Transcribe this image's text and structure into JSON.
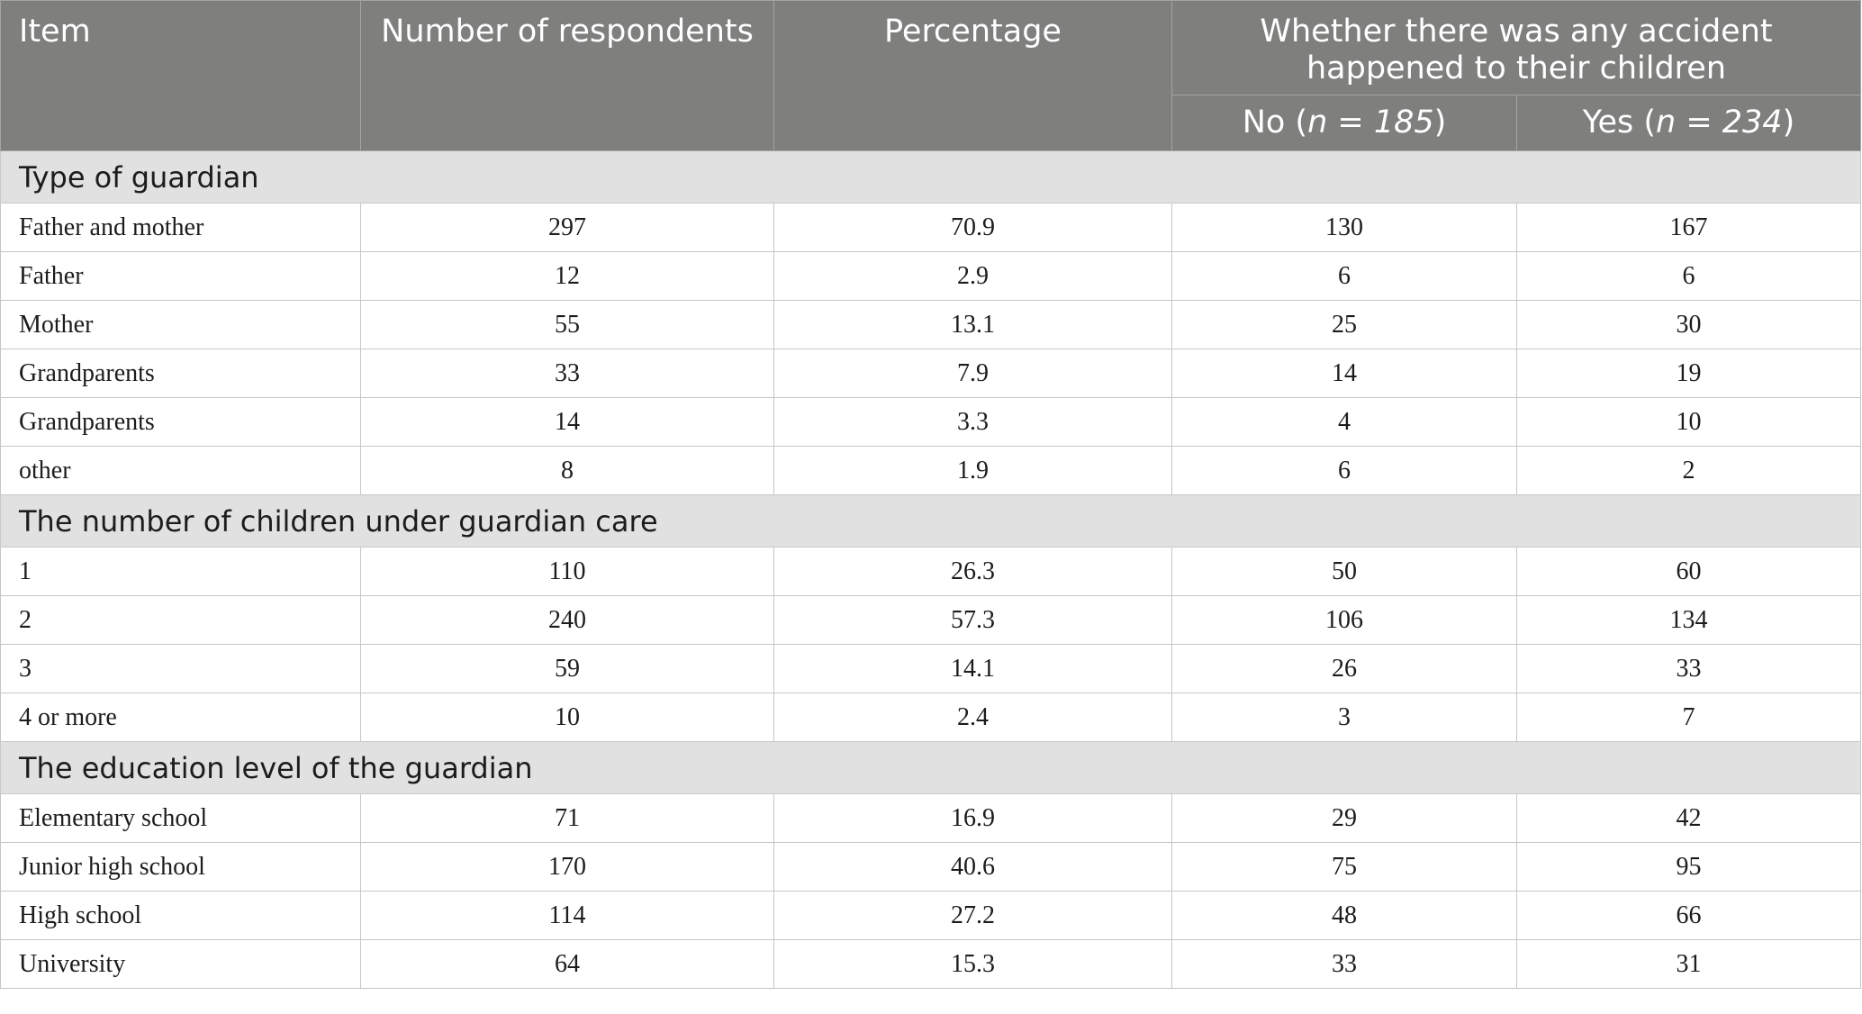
{
  "header": {
    "item": "Item",
    "respondents": "Number of respondents",
    "percentage": "Percentage",
    "group": "Whether there was any accident happened to their children",
    "no_label": "No (",
    "no_n": "n = 185",
    "no_close": ")",
    "yes_label": "Yes (",
    "yes_n": "n = 234",
    "yes_close": ")"
  },
  "sections": [
    {
      "title": "Type of guardian",
      "rows": [
        [
          "Father and mother",
          "297",
          "70.9",
          "130",
          "167"
        ],
        [
          "Father",
          "12",
          "2.9",
          "6",
          "6"
        ],
        [
          "Mother",
          "55",
          "13.1",
          "25",
          "30"
        ],
        [
          "Grandparents",
          "33",
          "7.9",
          "14",
          "19"
        ],
        [
          "Grandparents",
          "14",
          "3.3",
          "4",
          "10"
        ],
        [
          "other",
          "8",
          "1.9",
          "6",
          "2"
        ]
      ]
    },
    {
      "title": "The number of children under guardian care",
      "rows": [
        [
          "1",
          "110",
          "26.3",
          "50",
          "60"
        ],
        [
          "2",
          "240",
          "57.3",
          "106",
          "134"
        ],
        [
          "3",
          "59",
          "14.1",
          "26",
          "33"
        ],
        [
          "4 or more",
          "10",
          "2.4",
          "3",
          "7"
        ]
      ]
    },
    {
      "title": "The education level of the guardian",
      "rows": [
        [
          "Elementary school",
          "71",
          "16.9",
          "29",
          "42"
        ],
        [
          "Junior high school",
          "170",
          "40.6",
          "75",
          "95"
        ],
        [
          "High school",
          "114",
          "27.2",
          "48",
          "66"
        ],
        [
          "University",
          "64",
          "15.3",
          "33",
          "31"
        ]
      ]
    }
  ],
  "colors": {
    "header_bg": "#7f807e",
    "section_bg": "#e1e1e1"
  }
}
